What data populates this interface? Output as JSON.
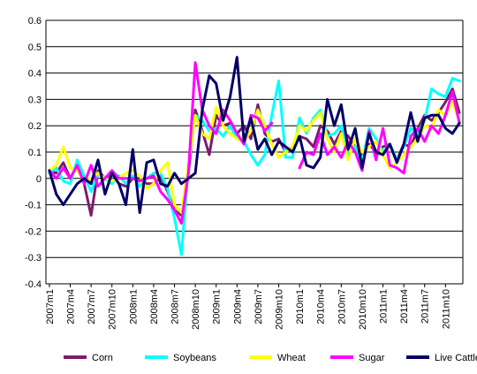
{
  "chart_data": {
    "type": "line",
    "title": "",
    "xlabel": "",
    "ylabel": "",
    "ylim": [
      -0.4,
      0.6
    ],
    "yticks": [
      "0.6",
      "0.5",
      "0.4",
      "0.3",
      "0.2",
      "0.1",
      "0",
      "-0.1",
      "-0.2",
      "-0.3",
      "-0.4"
    ],
    "grid": "horizontal",
    "legend_position": "bottom",
    "x": [
      "2007m1",
      "2007m2",
      "2007m3",
      "2007m4",
      "2007m5",
      "2007m6",
      "2007m7",
      "2007m8",
      "2007m9",
      "2007m10",
      "2007m11",
      "2007m12",
      "2008m1",
      "2008m2",
      "2008m3",
      "2008m4",
      "2008m5",
      "2008m6",
      "2008m7",
      "2008m8",
      "2008m9",
      "2008m10",
      "2008m11",
      "2008m12",
      "2009m1",
      "2009m2",
      "2009m3",
      "2009m4",
      "2009m5",
      "2009m6",
      "2009m7",
      "2009m8",
      "2009m9",
      "2009m10",
      "2009m11",
      "2009m12",
      "2010m1",
      "2010m2",
      "2010m3",
      "2010m4",
      "2010m5",
      "2010m6",
      "2010m7",
      "2010m8",
      "2010m9",
      "2010m10",
      "2010m11",
      "2010m12",
      "2011m1",
      "2011m2",
      "2011m3",
      "2011m4",
      "2011m5",
      "2011m6",
      "2011m7",
      "2011m8",
      "2011m9",
      "2011m10",
      "2011m11",
      "2011m12"
    ],
    "x_tick_labels": [
      "2007m1",
      "2007m4",
      "2007m7",
      "2007m10",
      "2008m1",
      "2008m4",
      "2008m7",
      "2008m10",
      "2009m1",
      "2009m4",
      "2009m7",
      "2009m10",
      "2010m1",
      "2010m4",
      "2010m7",
      "2010m10",
      "2011m1",
      "2011m4",
      "2011m7",
      "2011m10"
    ],
    "series": [
      {
        "name": "Corn",
        "color": "#7b1c6e",
        "values": [
          0.03,
          0.02,
          0.06,
          0.0,
          0.05,
          -0.02,
          -0.14,
          0.03,
          0.0,
          0.02,
          -0.02,
          -0.03,
          0.0,
          0.0,
          -0.02,
          -0.02,
          0.01,
          -0.05,
          -0.12,
          -0.14,
          0.02,
          0.26,
          0.18,
          0.09,
          0.24,
          0.2,
          0.21,
          0.17,
          0.2,
          0.15,
          0.28,
          0.17,
          0.14,
          0.15,
          0.1,
          0.12,
          0.16,
          0.15,
          0.12,
          0.2,
          0.18,
          0.13,
          0.18,
          0.16,
          0.12,
          0.09,
          0.13,
          0.1,
          0.12,
          0.13,
          0.07,
          0.13,
          0.12,
          0.19,
          0.24,
          0.22,
          0.25,
          0.29,
          0.34,
          0.25
        ]
      },
      {
        "name": "Soybeans",
        "color": "#00ffff",
        "values": [
          0.02,
          0.04,
          -0.01,
          -0.02,
          0.07,
          0.01,
          -0.05,
          0.02,
          0.0,
          -0.02,
          0.01,
          -0.02,
          0.01,
          -0.03,
          0.0,
          0.02,
          0.02,
          -0.04,
          -0.15,
          -0.29,
          0.05,
          0.24,
          0.22,
          0.18,
          0.19,
          0.16,
          0.2,
          0.15,
          0.14,
          0.09,
          0.05,
          0.09,
          0.24,
          0.37,
          0.08,
          0.08,
          0.23,
          0.17,
          0.23,
          0.26,
          0.16,
          0.17,
          0.2,
          0.09,
          0.12,
          0.06,
          0.19,
          0.15,
          0.1,
          0.13,
          0.07,
          0.12,
          0.19,
          0.17,
          0.22,
          0.34,
          0.32,
          0.31,
          0.38,
          0.37
        ]
      },
      {
        "name": "Wheat",
        "color": "#ffff00",
        "values": [
          0.03,
          0.05,
          0.12,
          0.04,
          0.03,
          -0.01,
          0.0,
          0.02,
          0.0,
          -0.01,
          0.0,
          0.02,
          0.03,
          0.01,
          -0.04,
          -0.02,
          0.03,
          0.06,
          -0.1,
          -0.13,
          0.05,
          0.24,
          0.17,
          0.15,
          0.27,
          0.2,
          0.17,
          0.15,
          0.14,
          0.18,
          0.26,
          0.2,
          0.13,
          0.08,
          0.1,
          0.12,
          0.2,
          0.18,
          0.22,
          0.25,
          0.15,
          0.1,
          0.17,
          0.07,
          0.15,
          0.1,
          0.12,
          0.14,
          0.09,
          0.04,
          0.06,
          0.09,
          0.12,
          0.15,
          0.2,
          0.19,
          0.26,
          0.24,
          0.29,
          0.22
        ]
      },
      {
        "name": "Sugar",
        "color": "#ff00ff",
        "values": [
          0.03,
          0.0,
          0.04,
          0.0,
          0.05,
          -0.02,
          0.05,
          -0.03,
          0.0,
          0.03,
          0.0,
          0.0,
          0.0,
          -0.01,
          0.0,
          0.01,
          -0.05,
          -0.08,
          -0.12,
          -0.17,
          0.02,
          0.44,
          0.26,
          0.2,
          0.17,
          0.26,
          0.22,
          0.17,
          0.13,
          0.24,
          0.23,
          0.18,
          0.21,
          null,
          null,
          null,
          0.04,
          0.1,
          0.09,
          0.17,
          0.09,
          0.12,
          0.08,
          0.14,
          0.1,
          0.03,
          0.18,
          0.07,
          0.19,
          0.05,
          0.04,
          0.02,
          0.16,
          0.19,
          0.14,
          0.2,
          0.17,
          0.24,
          0.33,
          0.21
        ]
      },
      {
        "name": "Live Cattle",
        "color": "#000066",
        "values": [
          0.03,
          -0.06,
          -0.1,
          -0.06,
          -0.02,
          0.0,
          -0.02,
          0.07,
          -0.06,
          0.02,
          -0.02,
          -0.1,
          0.11,
          -0.13,
          0.06,
          0.07,
          -0.02,
          -0.03,
          0.02,
          -0.02,
          0.0,
          0.02,
          0.26,
          0.39,
          0.36,
          0.22,
          0.31,
          0.46,
          0.14,
          0.23,
          0.11,
          0.15,
          0.09,
          0.14,
          0.12,
          0.1,
          0.16,
          0.05,
          0.04,
          0.08,
          0.3,
          0.2,
          0.28,
          0.11,
          0.19,
          0.04,
          0.17,
          0.1,
          0.09,
          0.13,
          0.06,
          0.13,
          0.25,
          0.14,
          0.23,
          0.24,
          0.24,
          0.19,
          0.17,
          0.21
        ]
      }
    ]
  }
}
